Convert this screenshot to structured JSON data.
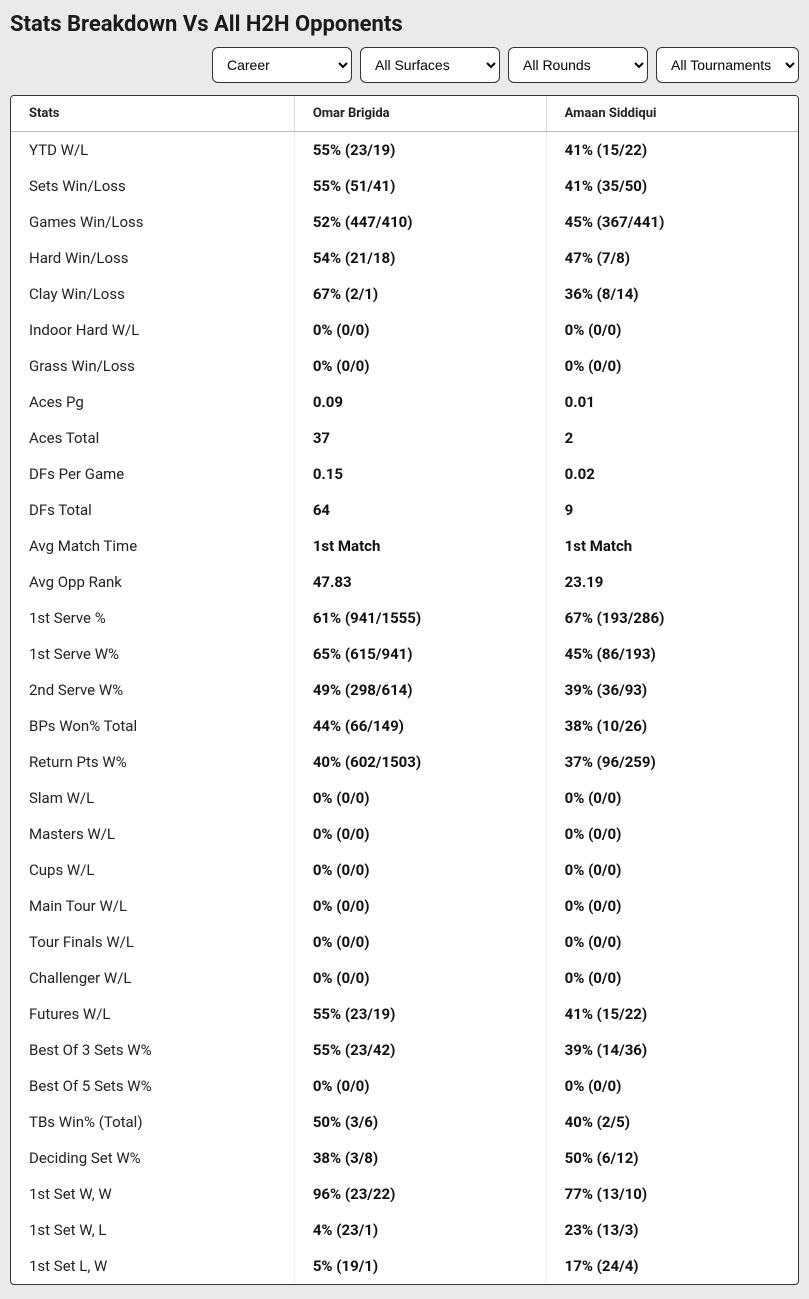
{
  "title": "Stats Breakdown Vs All H2H Opponents",
  "filters": {
    "period": "Career",
    "surface": "All Surfaces",
    "round": "All Rounds",
    "tournament": "All Tournaments"
  },
  "columns": {
    "stats": "Stats",
    "player1": "Omar Brigida",
    "player2": "Amaan Siddiqui"
  },
  "rows": [
    {
      "stat": "YTD W/L",
      "p1": "55% (23/19)",
      "p2": "41% (15/22)"
    },
    {
      "stat": "Sets Win/Loss",
      "p1": "55% (51/41)",
      "p2": "41% (35/50)"
    },
    {
      "stat": "Games Win/Loss",
      "p1": "52% (447/410)",
      "p2": "45% (367/441)"
    },
    {
      "stat": "Hard Win/Loss",
      "p1": "54% (21/18)",
      "p2": "47% (7/8)"
    },
    {
      "stat": "Clay Win/Loss",
      "p1": "67% (2/1)",
      "p2": "36% (8/14)"
    },
    {
      "stat": "Indoor Hard W/L",
      "p1": "0% (0/0)",
      "p2": "0% (0/0)"
    },
    {
      "stat": "Grass Win/Loss",
      "p1": "0% (0/0)",
      "p2": "0% (0/0)"
    },
    {
      "stat": "Aces Pg",
      "p1": "0.09",
      "p2": "0.01"
    },
    {
      "stat": "Aces Total",
      "p1": "37",
      "p2": "2"
    },
    {
      "stat": "DFs Per Game",
      "p1": "0.15",
      "p2": "0.02"
    },
    {
      "stat": "DFs Total",
      "p1": "64",
      "p2": "9"
    },
    {
      "stat": "Avg Match Time",
      "p1": "1st Match",
      "p2": "1st Match"
    },
    {
      "stat": "Avg Opp Rank",
      "p1": "47.83",
      "p2": "23.19"
    },
    {
      "stat": "1st Serve %",
      "p1": "61% (941/1555)",
      "p2": "67% (193/286)"
    },
    {
      "stat": "1st Serve W%",
      "p1": "65% (615/941)",
      "p2": "45% (86/193)"
    },
    {
      "stat": "2nd Serve W%",
      "p1": "49% (298/614)",
      "p2": "39% (36/93)"
    },
    {
      "stat": "BPs Won% Total",
      "p1": "44% (66/149)",
      "p2": "38% (10/26)"
    },
    {
      "stat": "Return Pts W%",
      "p1": "40% (602/1503)",
      "p2": "37% (96/259)"
    },
    {
      "stat": "Slam W/L",
      "p1": "0% (0/0)",
      "p2": "0% (0/0)"
    },
    {
      "stat": "Masters W/L",
      "p1": "0% (0/0)",
      "p2": "0% (0/0)"
    },
    {
      "stat": "Cups W/L",
      "p1": "0% (0/0)",
      "p2": "0% (0/0)"
    },
    {
      "stat": "Main Tour W/L",
      "p1": "0% (0/0)",
      "p2": "0% (0/0)"
    },
    {
      "stat": "Tour Finals W/L",
      "p1": "0% (0/0)",
      "p2": "0% (0/0)"
    },
    {
      "stat": "Challenger W/L",
      "p1": "0% (0/0)",
      "p2": "0% (0/0)"
    },
    {
      "stat": "Futures W/L",
      "p1": "55% (23/19)",
      "p2": "41% (15/22)"
    },
    {
      "stat": "Best Of 3 Sets W%",
      "p1": "55% (23/42)",
      "p2": "39% (14/36)"
    },
    {
      "stat": "Best Of 5 Sets W%",
      "p1": "0% (0/0)",
      "p2": "0% (0/0)"
    },
    {
      "stat": "TBs Win% (Total)",
      "p1": "50% (3/6)",
      "p2": "40% (2/5)"
    },
    {
      "stat": "Deciding Set W%",
      "p1": "38% (3/8)",
      "p2": "50% (6/12)"
    },
    {
      "stat": "1st Set W, W",
      "p1": "96% (23/22)",
      "p2": "77% (13/10)"
    },
    {
      "stat": "1st Set W, L",
      "p1": "4% (23/1)",
      "p2": "23% (13/3)"
    },
    {
      "stat": "1st Set L, W",
      "p1": "5% (19/1)",
      "p2": "17% (24/4)"
    }
  ]
}
